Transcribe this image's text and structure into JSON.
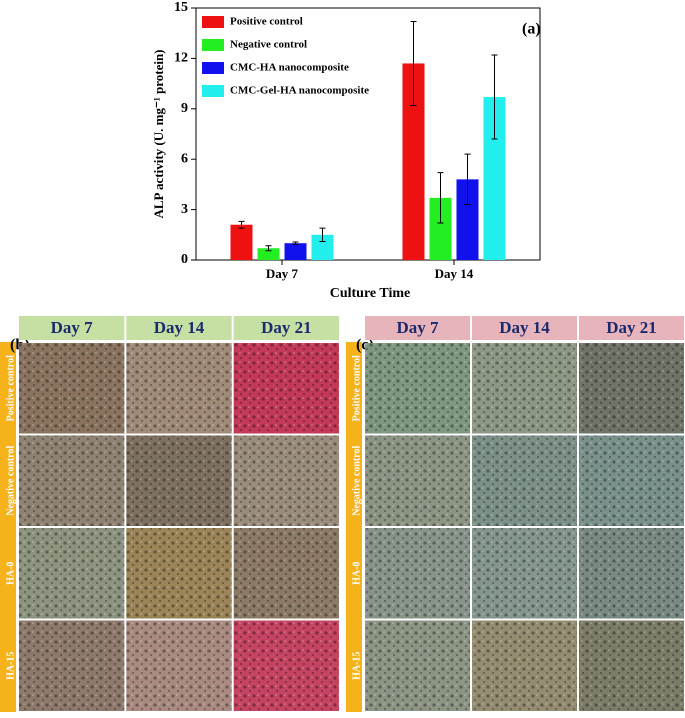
{
  "chart_data": {
    "type": "bar",
    "annotation": "(a)",
    "y_label": "ALP activity (U. mg⁻¹ protein)",
    "x_label": "Culture Time",
    "categories": [
      "Day 7",
      "Day 14"
    ],
    "series": [
      {
        "name": "Positive control",
        "color": "#ee1111",
        "values": [
          2.1,
          11.7
        ],
        "errors": [
          0.2,
          2.5
        ]
      },
      {
        "name": "Negative control",
        "color": "#22ee22",
        "values": [
          0.7,
          3.7
        ],
        "errors": [
          0.15,
          1.5
        ]
      },
      {
        "name": "CMC-HA nanocomposite",
        "color": "#1111ee",
        "values": [
          1.0,
          4.8
        ],
        "errors": [
          0.07,
          1.5
        ]
      },
      {
        "name": "CMC-Gel-HA nanocomposite",
        "color": "#22eeee",
        "values": [
          1.5,
          9.7
        ],
        "errors": [
          0.4,
          2.5
        ]
      }
    ],
    "ylim": [
      0,
      15
    ],
    "yticks": [
      0,
      3,
      6,
      9,
      12,
      15
    ]
  },
  "panel_b": {
    "label": "(b)",
    "columns": [
      "Day 7",
      "Day 14",
      "Day 21"
    ],
    "rows": [
      "Positive control",
      "Negative control",
      "HA-0",
      "HA-15"
    ]
  },
  "panel_c": {
    "label": "(c)",
    "columns": [
      "Day 7",
      "Day 14",
      "Day 21"
    ],
    "rows": [
      "Positive control",
      "Negative control",
      "HA-0",
      "HA-15"
    ]
  }
}
